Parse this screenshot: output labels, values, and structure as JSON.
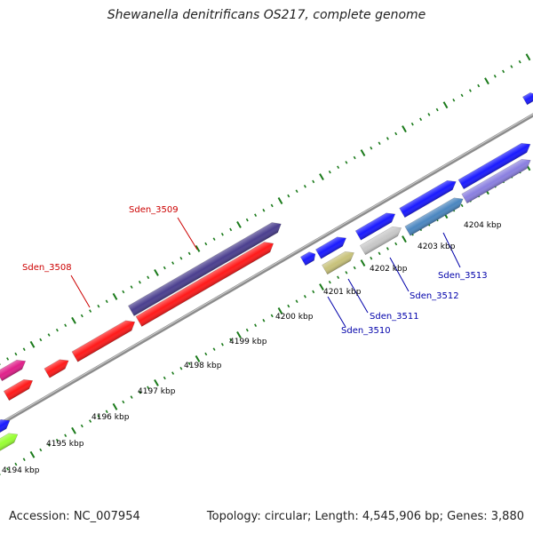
{
  "title": "Shewanella denitrificans OS217, complete genome",
  "footer": {
    "accession": "Accession: NC_007954",
    "summary": "Topology: circular; Length: 4,545,906 bp; Genes: 3,880"
  },
  "colors": {
    "backbone": "#8c8c8c",
    "tick": "#1a7a1a",
    "label_reverse": "#cc0000",
    "label_forward": "#0000aa"
  },
  "scale": {
    "unit": "kbp",
    "tick_labels": [
      "4194 kbp",
      "4195 kbp",
      "4196 kbp",
      "4197 kbp",
      "4198 kbp",
      "4199 kbp",
      "4200 kbp",
      "4201 kbp",
      "4202 kbp",
      "4203 kbp",
      "4204 kbp"
    ]
  },
  "gene_labels": [
    {
      "id": "Sden_3508",
      "color": "#cc0000"
    },
    {
      "id": "Sden_3509",
      "color": "#cc0000"
    },
    {
      "id": "Sden_3510",
      "color": "#0000aa"
    },
    {
      "id": "Sden_3511",
      "color": "#0000aa"
    },
    {
      "id": "Sden_3512",
      "color": "#0000aa"
    },
    {
      "id": "Sden_3513",
      "color": "#0000aa"
    }
  ],
  "features": [
    {
      "name": "gene-pink-reverse",
      "color": "#e0208a",
      "strand": "reverse"
    },
    {
      "name": "gene-red-small-1",
      "color": "#ff1a1a",
      "strand": "reverse"
    },
    {
      "name": "gene-red-small-2",
      "color": "#ff1a1a",
      "strand": "reverse"
    },
    {
      "name": "gene-red-3508",
      "color": "#ff1a1a",
      "strand": "reverse"
    },
    {
      "name": "gene-red-long",
      "color": "#ff1a1a",
      "strand": "reverse"
    },
    {
      "name": "gene-purple-3509",
      "color": "#4b3f8f",
      "strand": "reverse"
    },
    {
      "name": "gene-blue-left",
      "color": "#1a1aff",
      "strand": "forward"
    },
    {
      "name": "gene-green-left",
      "color": "#99ff33",
      "strand": "forward"
    },
    {
      "name": "gene-blue-small",
      "color": "#1a1aff",
      "strand": "forward"
    },
    {
      "name": "gene-blue-a",
      "color": "#1a1aff",
      "strand": "forward"
    },
    {
      "name": "gene-olive-3510",
      "color": "#c8c27a",
      "strand": "forward"
    },
    {
      "name": "gene-blue-b",
      "color": "#1a1aff",
      "strand": "forward"
    },
    {
      "name": "gene-grey-3512",
      "color": "#c8c8c8",
      "strand": "forward"
    },
    {
      "name": "gene-blue-c",
      "color": "#1a1aff",
      "strand": "forward"
    },
    {
      "name": "gene-steel-3513",
      "color": "#4a86c0",
      "strand": "forward"
    },
    {
      "name": "gene-blue-d",
      "color": "#1a1aff",
      "strand": "forward"
    },
    {
      "name": "gene-lavender",
      "color": "#8a7fe0",
      "strand": "forward"
    },
    {
      "name": "gene-blue-e",
      "color": "#1a1aff",
      "strand": "forward"
    }
  ]
}
